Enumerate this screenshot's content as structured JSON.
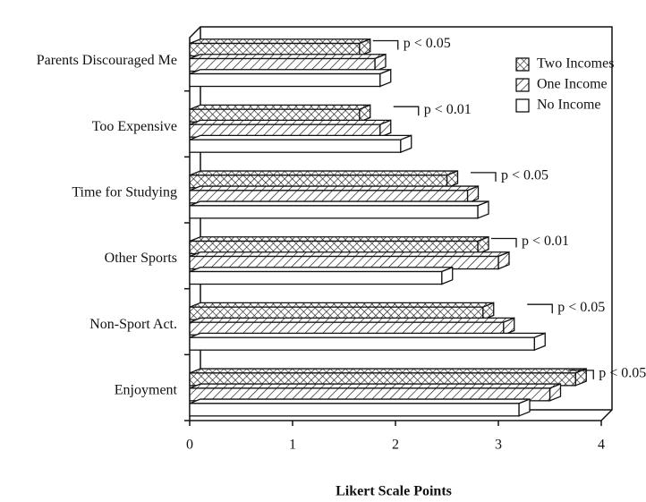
{
  "chart_data": {
    "type": "bar3d_horizontal",
    "categories": [
      "Parents Discouraged Me",
      "Too Expensive",
      "Time for Studying",
      "Other Sports",
      "Non-Sport Act.",
      "Enjoyment"
    ],
    "series": [
      {
        "name": "Two Incomes",
        "color": "#111111",
        "hatch": "cross",
        "values": [
          1.65,
          1.65,
          2.5,
          2.8,
          2.85,
          3.75
        ]
      },
      {
        "name": "One Income",
        "color": "#111111",
        "hatch": "diagonal",
        "values": [
          1.8,
          1.85,
          2.7,
          3.0,
          3.05,
          3.5
        ]
      },
      {
        "name": "No Income",
        "color": "#111111",
        "hatch": "none",
        "values": [
          1.85,
          2.05,
          2.8,
          2.45,
          3.35,
          3.2
        ]
      }
    ],
    "annotations": [
      "p < 0.05",
      "p < 0.01",
      "p < 0.05",
      "p < 0.01",
      "p < 0.05",
      "p < 0.05"
    ],
    "xlabel": "Likert Scale Points",
    "xlim": [
      0,
      4
    ],
    "xticks": [
      0,
      1,
      2,
      3,
      4
    ],
    "legend": "top-right"
  }
}
